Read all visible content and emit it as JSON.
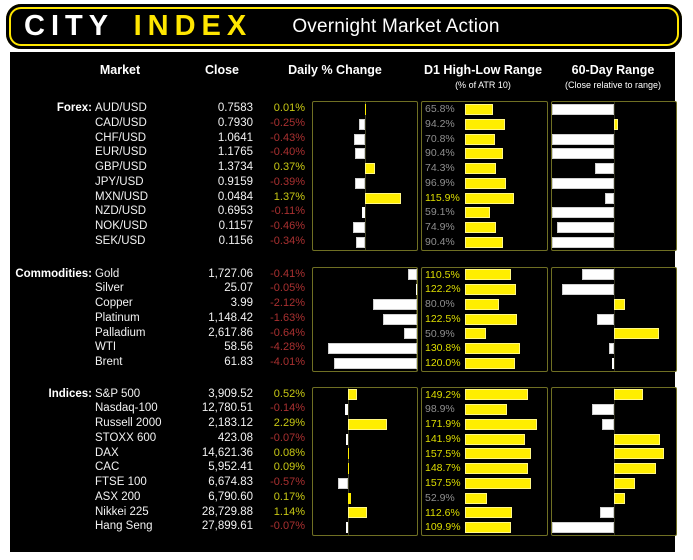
{
  "header": {
    "logo_part1": "CITY",
    "logo_part2": "INDEX",
    "title": "Overnight Market Action"
  },
  "columns": {
    "market": "Market",
    "close": "Close",
    "daily": "Daily % Change",
    "d1": "D1 High-Low Range",
    "d1_sub": "(% of ATR 10)",
    "range60": "60-Day Range",
    "range60_sub": "(Close relative to range)"
  },
  "colors": {
    "accent": "#ffe600",
    "baryellow": "#ffee00",
    "barwhite": "#ffffff",
    "pos": "#c8c814",
    "neg": "#a93030",
    "muted": "#8f8f8f",
    "d1hi": "#dede00",
    "text": "#f2f2f2",
    "boxborder": "#6f6f23"
  },
  "chart_data": {
    "type": "table",
    "title": "Overnight Market Action",
    "legend_position": "none",
    "d1_axis": [
      0,
      195
    ],
    "range60_axis": [
      0,
      100
    ],
    "sections": [
      {
        "label": "Forex:",
        "daily_axis": [
          -2,
          2
        ],
        "rows": [
          {
            "market": "AUD/USD",
            "close": "0.7583",
            "daily_pct": 0.01,
            "daily_display": "0.01%",
            "d1_atr_pct": 65.8,
            "d1_display": "65.8%",
            "range60_pctile": 0
          },
          {
            "market": "CAD/USD",
            "close": "0.7930",
            "daily_pct": -0.25,
            "daily_display": "-0.25%",
            "d1_atr_pct": 94.2,
            "d1_display": "94.2%",
            "range60_pctile": 53
          },
          {
            "market": "CHF/USD",
            "close": "1.0641",
            "daily_pct": -0.43,
            "daily_display": "-0.43%",
            "d1_atr_pct": 70.8,
            "d1_display": "70.8%",
            "range60_pctile": 0
          },
          {
            "market": "EUR/USD",
            "close": "1.1765",
            "daily_pct": -0.4,
            "daily_display": "-0.40%",
            "d1_atr_pct": 90.4,
            "d1_display": "90.4%",
            "range60_pctile": 0
          },
          {
            "market": "GBP/USD",
            "close": "1.3734",
            "daily_pct": 0.37,
            "daily_display": "0.37%",
            "d1_atr_pct": 74.3,
            "d1_display": "74.3%",
            "range60_pctile": 35
          },
          {
            "market": "JPY/USD",
            "close": "0.9159",
            "daily_pct": -0.39,
            "daily_display": "-0.39%",
            "d1_atr_pct": 96.9,
            "d1_display": "96.9%",
            "range60_pctile": 0
          },
          {
            "market": "MXN/USD",
            "close": "0.0484",
            "daily_pct": 1.37,
            "daily_display": "1.37%",
            "d1_atr_pct": 115.9,
            "d1_display": "115.9%",
            "range60_pctile": 43
          },
          {
            "market": "NZD/USD",
            "close": "0.6953",
            "daily_pct": -0.11,
            "daily_display": "-0.11%",
            "d1_atr_pct": 59.1,
            "d1_display": "59.1%",
            "range60_pctile": 0
          },
          {
            "market": "NOK/USD",
            "close": "0.1157",
            "daily_pct": -0.46,
            "daily_display": "-0.46%",
            "d1_atr_pct": 74.9,
            "d1_display": "74.9%",
            "range60_pctile": 4
          },
          {
            "market": "SEK/USD",
            "close": "0.1156",
            "daily_pct": -0.34,
            "daily_display": "-0.34%",
            "d1_atr_pct": 90.4,
            "d1_display": "90.4%",
            "range60_pctile": 0
          }
        ]
      },
      {
        "label": "Commodities:",
        "daily_axis": [
          -5,
          0
        ],
        "rows": [
          {
            "market": "Gold",
            "close": "1,727.06",
            "daily_pct": -0.41,
            "daily_display": "-0.41%",
            "d1_atr_pct": 110.5,
            "d1_display": "110.5%",
            "range60_pctile": 24
          },
          {
            "market": "Silver",
            "close": "25.07",
            "daily_pct": -0.05,
            "daily_display": "-0.05%",
            "d1_atr_pct": 122.2,
            "d1_display": "122.2%",
            "range60_pctile": 8
          },
          {
            "market": "Copper",
            "close": "3.99",
            "daily_pct": -2.12,
            "daily_display": "-2.12%",
            "d1_atr_pct": 80.0,
            "d1_display": "80.0%",
            "range60_pctile": 59
          },
          {
            "market": "Platinum",
            "close": "1,148.42",
            "daily_pct": -1.63,
            "daily_display": "-1.63%",
            "d1_atr_pct": 122.5,
            "d1_display": "122.5%",
            "range60_pctile": 36
          },
          {
            "market": "Palladium",
            "close": "2,617.86",
            "daily_pct": -0.64,
            "daily_display": "-0.64%",
            "d1_atr_pct": 50.9,
            "d1_display": "50.9%",
            "range60_pctile": 86
          },
          {
            "market": "WTI",
            "close": "58.56",
            "daily_pct": -4.28,
            "daily_display": "-4.28%",
            "d1_atr_pct": 130.8,
            "d1_display": "130.8%",
            "range60_pctile": 46
          },
          {
            "market": "Brent",
            "close": "61.83",
            "daily_pct": -4.01,
            "daily_display": "-4.01%",
            "d1_atr_pct": 120.0,
            "d1_display": "120.0%",
            "range60_pctile": 48
          }
        ]
      },
      {
        "label": "Indices:",
        "daily_axis": [
          -2,
          4
        ],
        "rows": [
          {
            "market": "S&P 500",
            "close": "3,909.52",
            "daily_pct": 0.52,
            "daily_display": "0.52%",
            "d1_atr_pct": 149.2,
            "d1_display": "149.2%",
            "range60_pctile": 73
          },
          {
            "market": "Nasdaq-100",
            "close": "12,780.51",
            "daily_pct": -0.14,
            "daily_display": "-0.14%",
            "d1_atr_pct": 98.9,
            "d1_display": "98.9%",
            "range60_pctile": 32
          },
          {
            "market": "Russell 2000",
            "close": "2,183.12",
            "daily_pct": 2.29,
            "daily_display": "2.29%",
            "d1_atr_pct": 171.9,
            "d1_display": "171.9%",
            "range60_pctile": 40
          },
          {
            "market": "STOXX 600",
            "close": "423.08",
            "daily_pct": -0.07,
            "daily_display": "-0.07%",
            "d1_atr_pct": 141.9,
            "d1_display": "141.9%",
            "range60_pctile": 87
          },
          {
            "market": "DAX",
            "close": "14,621.36",
            "daily_pct": 0.08,
            "daily_display": "0.08%",
            "d1_atr_pct": 157.5,
            "d1_display": "157.5%",
            "range60_pctile": 90
          },
          {
            "market": "CAC",
            "close": "5,952.41",
            "daily_pct": 0.09,
            "daily_display": "0.09%",
            "d1_atr_pct": 148.7,
            "d1_display": "148.7%",
            "range60_pctile": 84
          },
          {
            "market": "FTSE 100",
            "close": "6,674.83",
            "daily_pct": -0.57,
            "daily_display": "-0.57%",
            "d1_atr_pct": 157.5,
            "d1_display": "157.5%",
            "range60_pctile": 67
          },
          {
            "market": "ASX 200",
            "close": "6,790.60",
            "daily_pct": 0.17,
            "daily_display": "0.17%",
            "d1_atr_pct": 52.9,
            "d1_display": "52.9%",
            "range60_pctile": 59
          },
          {
            "market": "Nikkei 225",
            "close": "28,729.88",
            "daily_pct": 1.14,
            "daily_display": "1.14%",
            "d1_atr_pct": 112.6,
            "d1_display": "112.6%",
            "range60_pctile": 39
          },
          {
            "market": "Hang Seng",
            "close": "27,899.61",
            "daily_pct": -0.07,
            "daily_display": "-0.07%",
            "d1_atr_pct": 109.9,
            "d1_display": "109.9%",
            "range60_pctile": 0
          }
        ]
      }
    ]
  }
}
